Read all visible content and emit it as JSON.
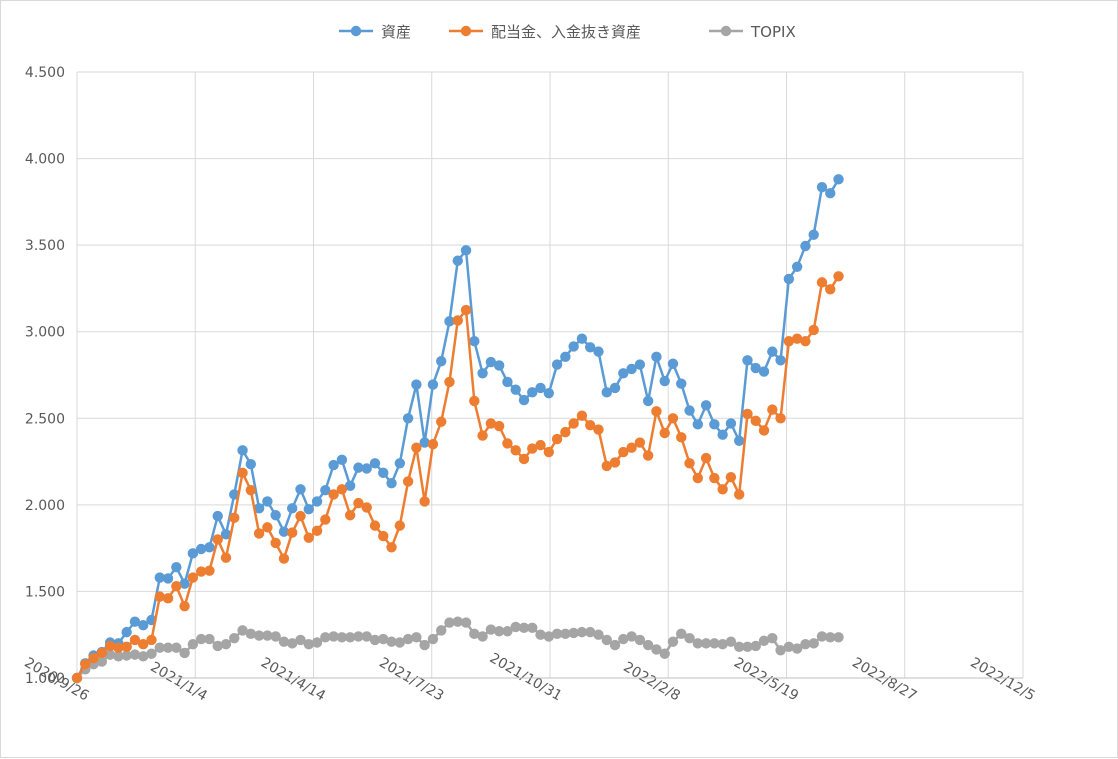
{
  "chart_data": {
    "type": "line",
    "title": "",
    "xlabel": "",
    "ylabel": "",
    "ylim": [
      1.0,
      4.5
    ],
    "y_tick_labels": [
      "1.000",
      "1.500",
      "2.000",
      "2.500",
      "3.000",
      "3.500",
      "4.000",
      "4.500"
    ],
    "y_ticks": [
      1.0,
      1.5,
      2.0,
      2.5,
      3.0,
      3.5,
      4.0,
      4.5
    ],
    "x_tick_labels": [
      "2020/9/26",
      "2021/1/4",
      "2021/4/14",
      "2021/7/23",
      "2021/10/31",
      "2022/2/8",
      "2022/5/19",
      "2022/8/27",
      "2022/12/5"
    ],
    "x_ticks": [
      "2020-09-26",
      "2021-01-04",
      "2021-04-14",
      "2021-07-23",
      "2021-10-31",
      "2022-02-08",
      "2022-05-19",
      "2022-08-27",
      "2022-12-05"
    ],
    "grid": true,
    "legend_position": "top",
    "start_date": "2020-09-26",
    "week_step_days": 7,
    "series": [
      {
        "name": "資産",
        "color": "#5b9bd5",
        "values": [
          1.0,
          1.085,
          1.13,
          1.15,
          1.205,
          1.2,
          1.265,
          1.325,
          1.305,
          1.335,
          1.58,
          1.575,
          1.64,
          1.545,
          1.72,
          1.745,
          1.755,
          1.935,
          1.83,
          2.06,
          2.315,
          2.235,
          1.98,
          2.02,
          1.94,
          1.845,
          1.98,
          2.09,
          1.975,
          2.02,
          2.085,
          2.23,
          2.26,
          2.11,
          2.215,
          2.21,
          2.24,
          2.185,
          2.125,
          2.24,
          2.5,
          2.695,
          2.36,
          2.695,
          2.83,
          3.06,
          3.41,
          3.47,
          2.945,
          2.76,
          2.825,
          2.805,
          2.71,
          2.665,
          2.605,
          2.65,
          2.675,
          2.645,
          2.81,
          2.855,
          2.915,
          2.96,
          2.91,
          2.885,
          2.65,
          2.675,
          2.76,
          2.785,
          2.81,
          2.6,
          2.855,
          2.715,
          2.815,
          2.7,
          2.545,
          2.465,
          2.575,
          2.465,
          2.405,
          2.47,
          2.37,
          2.835,
          2.79,
          2.77,
          2.885,
          2.835,
          3.305,
          3.375,
          3.495,
          3.56,
          3.835,
          3.8,
          3.88
        ]
      },
      {
        "name": "配当金、入金抜き資産",
        "color": "#ed7d31",
        "values": [
          1.0,
          1.08,
          1.115,
          1.145,
          1.185,
          1.175,
          1.18,
          1.22,
          1.195,
          1.22,
          1.47,
          1.46,
          1.53,
          1.415,
          1.58,
          1.615,
          1.62,
          1.8,
          1.695,
          1.925,
          2.185,
          2.085,
          1.835,
          1.87,
          1.78,
          1.69,
          1.84,
          1.935,
          1.81,
          1.85,
          1.915,
          2.06,
          2.09,
          1.94,
          2.01,
          1.985,
          1.88,
          1.82,
          1.755,
          1.88,
          2.135,
          2.33,
          2.02,
          2.35,
          2.48,
          2.71,
          3.065,
          3.125,
          2.6,
          2.4,
          2.47,
          2.455,
          2.355,
          2.315,
          2.265,
          2.325,
          2.345,
          2.305,
          2.38,
          2.42,
          2.47,
          2.515,
          2.46,
          2.435,
          2.225,
          2.245,
          2.305,
          2.33,
          2.36,
          2.285,
          2.54,
          2.415,
          2.5,
          2.39,
          2.24,
          2.155,
          2.27,
          2.155,
          2.09,
          2.16,
          2.06,
          2.525,
          2.485,
          2.43,
          2.55,
          2.5,
          2.945,
          2.96,
          2.945,
          3.01,
          3.285,
          3.245,
          3.32
        ]
      },
      {
        "name": "TOPIX",
        "color": "#a5a5a5",
        "values": [
          1.0,
          1.05,
          1.08,
          1.095,
          1.135,
          1.125,
          1.13,
          1.135,
          1.125,
          1.14,
          1.175,
          1.175,
          1.175,
          1.145,
          1.195,
          1.225,
          1.225,
          1.185,
          1.195,
          1.23,
          1.275,
          1.255,
          1.245,
          1.245,
          1.24,
          1.21,
          1.2,
          1.22,
          1.195,
          1.205,
          1.235,
          1.24,
          1.235,
          1.235,
          1.24,
          1.24,
          1.22,
          1.225,
          1.21,
          1.205,
          1.225,
          1.235,
          1.19,
          1.225,
          1.275,
          1.32,
          1.325,
          1.32,
          1.255,
          1.24,
          1.28,
          1.27,
          1.27,
          1.295,
          1.29,
          1.29,
          1.25,
          1.24,
          1.255,
          1.255,
          1.26,
          1.265,
          1.265,
          1.25,
          1.22,
          1.19,
          1.225,
          1.24,
          1.22,
          1.19,
          1.165,
          1.14,
          1.21,
          1.255,
          1.23,
          1.2,
          1.2,
          1.2,
          1.195,
          1.21,
          1.18,
          1.18,
          1.185,
          1.215,
          1.23,
          1.16,
          1.18,
          1.17,
          1.195,
          1.2,
          1.24,
          1.235,
          1.235
        ]
      }
    ]
  }
}
